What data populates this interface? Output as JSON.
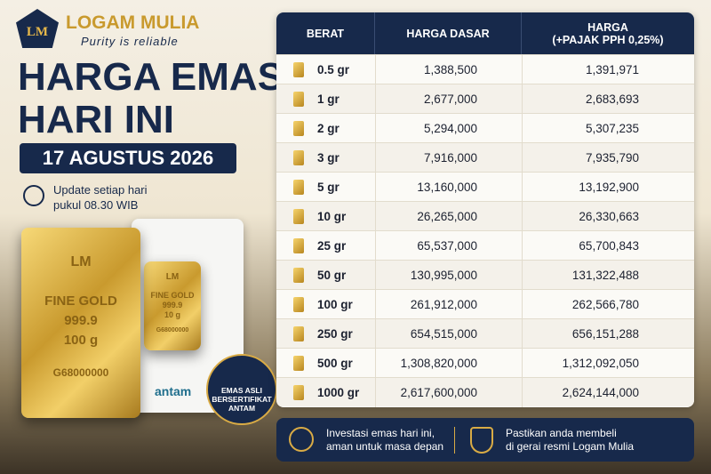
{
  "brand": {
    "logo": "LM",
    "name": "LOGAM MULIA",
    "tagline": "Purity is reliable"
  },
  "headline": {
    "title": [
      "HARGA EMAS",
      "HARI INI"
    ],
    "date": "17 AGUSTUS 2026",
    "update": [
      "Update setiap hari",
      "pukul 08.30 WIB"
    ]
  },
  "product": {
    "large_bar": {
      "logo": "LM",
      "lines": [
        "FINE GOLD",
        "999.9",
        "100 g",
        "G68000000"
      ]
    },
    "small_bar": {
      "logo": "LM",
      "lines": [
        "FINE GOLD",
        "999.9",
        "10 g",
        "G68000000"
      ]
    },
    "card_brand": "antam",
    "badge": [
      "EMAS ASLI",
      "BERSERTIFIKAT",
      "ANTAM"
    ]
  },
  "table": {
    "headers": [
      "BERAT",
      "HARGA DASAR",
      [
        "HARGA",
        "(+PAJAK PPH 0,25%)"
      ]
    ],
    "rows": [
      [
        "0.5 gr",
        "1,388,500",
        "1,391,971"
      ],
      [
        "1 gr",
        "2,677,000",
        "2,683,693"
      ],
      [
        "2 gr",
        "5,294,000",
        "5,307,235"
      ],
      [
        "3 gr",
        "7,916,000",
        "7,935,790"
      ],
      [
        "5 gr",
        "13,160,000",
        "13,192,900"
      ],
      [
        "10 gr",
        "26,265,000",
        "26,330,663"
      ],
      [
        "25 gr",
        "65,537,000",
        "65,700,843"
      ],
      [
        "50 gr",
        "130,995,000",
        "131,322,488"
      ],
      [
        "100 gr",
        "261,912,000",
        "262,566,780"
      ],
      [
        "250 gr",
        "654,515,000",
        "656,151,288"
      ],
      [
        "500 gr",
        "1,308,820,000",
        "1,312,092,050"
      ],
      [
        "1000 gr",
        "2,617,600,000",
        "2,624,144,000"
      ]
    ]
  },
  "footer": [
    [
      "Investasi emas hari ini,",
      "aman untuk masa depan"
    ],
    [
      "Pastikan anda membeli",
      "di gerai resmi Logam Mulia"
    ]
  ]
}
